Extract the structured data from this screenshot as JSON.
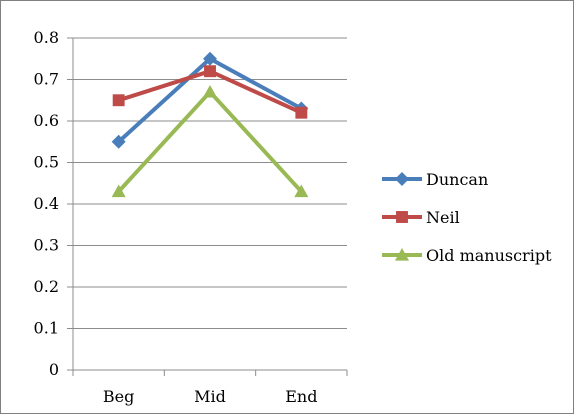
{
  "chart_data": {
    "type": "line",
    "title": "",
    "xlabel": "",
    "ylabel": "",
    "categories": [
      "Beg",
      "Mid",
      "End"
    ],
    "ylim": [
      0,
      0.8
    ],
    "yticks": [
      "0",
      "0.1",
      "0.2",
      "0.3",
      "0.4",
      "0.5",
      "0.6",
      "0.7",
      "0.8"
    ],
    "grid": "horizontal",
    "legend": "right",
    "series": [
      {
        "name": "Duncan",
        "values": [
          0.55,
          0.75,
          0.63
        ],
        "color": "#4a7ebb",
        "marker": "diamond"
      },
      {
        "name": "Neil",
        "values": [
          0.65,
          0.72,
          0.62
        ],
        "color": "#be4b48",
        "marker": "square"
      },
      {
        "name": "Old manuscript",
        "values": [
          0.43,
          0.67,
          0.43
        ],
        "color": "#98b954",
        "marker": "triangle"
      }
    ]
  }
}
